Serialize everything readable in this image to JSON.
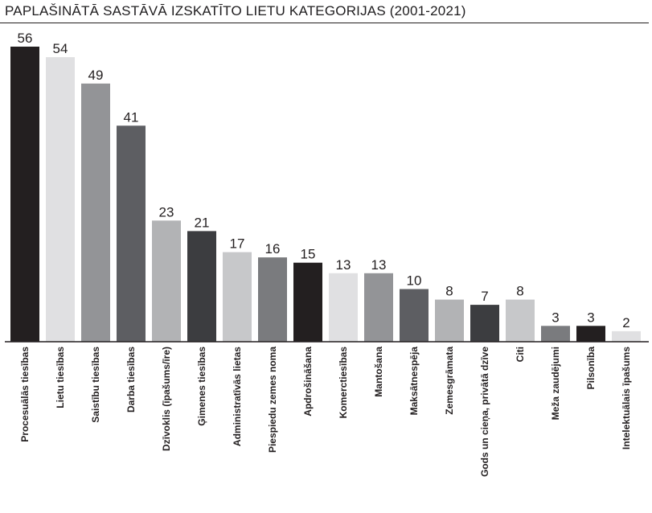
{
  "chart_data": {
    "type": "bar",
    "title": "PAPLAŠINĀTĀ SASTĀVĀ IZSKATĪTO LIETU KATEGORIJAS (2001-2021)",
    "xlabel": "",
    "ylabel": "",
    "ylim": [
      0,
      56
    ],
    "grid": false,
    "categories": [
      "Procesuālās tiesības",
      "Lietu tiesības",
      "Saistību tiesības",
      "Darba tiesības",
      "Dzīvoklis (īpašums/īre)",
      "Ģimenes tiesības",
      "Administratīvās lietas",
      "Piespiedu zemes noma",
      "Apdrošināšana",
      "Komerctiesības",
      "Mantošana",
      "Maksātnespēja",
      "Zemesgrāmata",
      "Gods un cieņa, privātā dzīve",
      "Citi",
      "Meža zaudējumi",
      "Pilsonība",
      "Intelektuālais īpašums"
    ],
    "values": [
      56,
      54,
      49,
      41,
      23,
      21,
      17,
      16,
      15,
      13,
      13,
      10,
      8,
      7,
      8,
      3,
      3,
      2
    ],
    "colors": [
      "#231f20",
      "#e0e0e2",
      "#939497",
      "#5d5e62",
      "#b2b3b5",
      "#3c3d40",
      "#c7c8ca",
      "#7a7b7e",
      "#231f20",
      "#e0e0e2",
      "#939497",
      "#5d5e62",
      "#b2b3b5",
      "#3c3d40",
      "#c7c8ca",
      "#7a7b7e",
      "#231f20",
      "#e0e0e2"
    ]
  }
}
